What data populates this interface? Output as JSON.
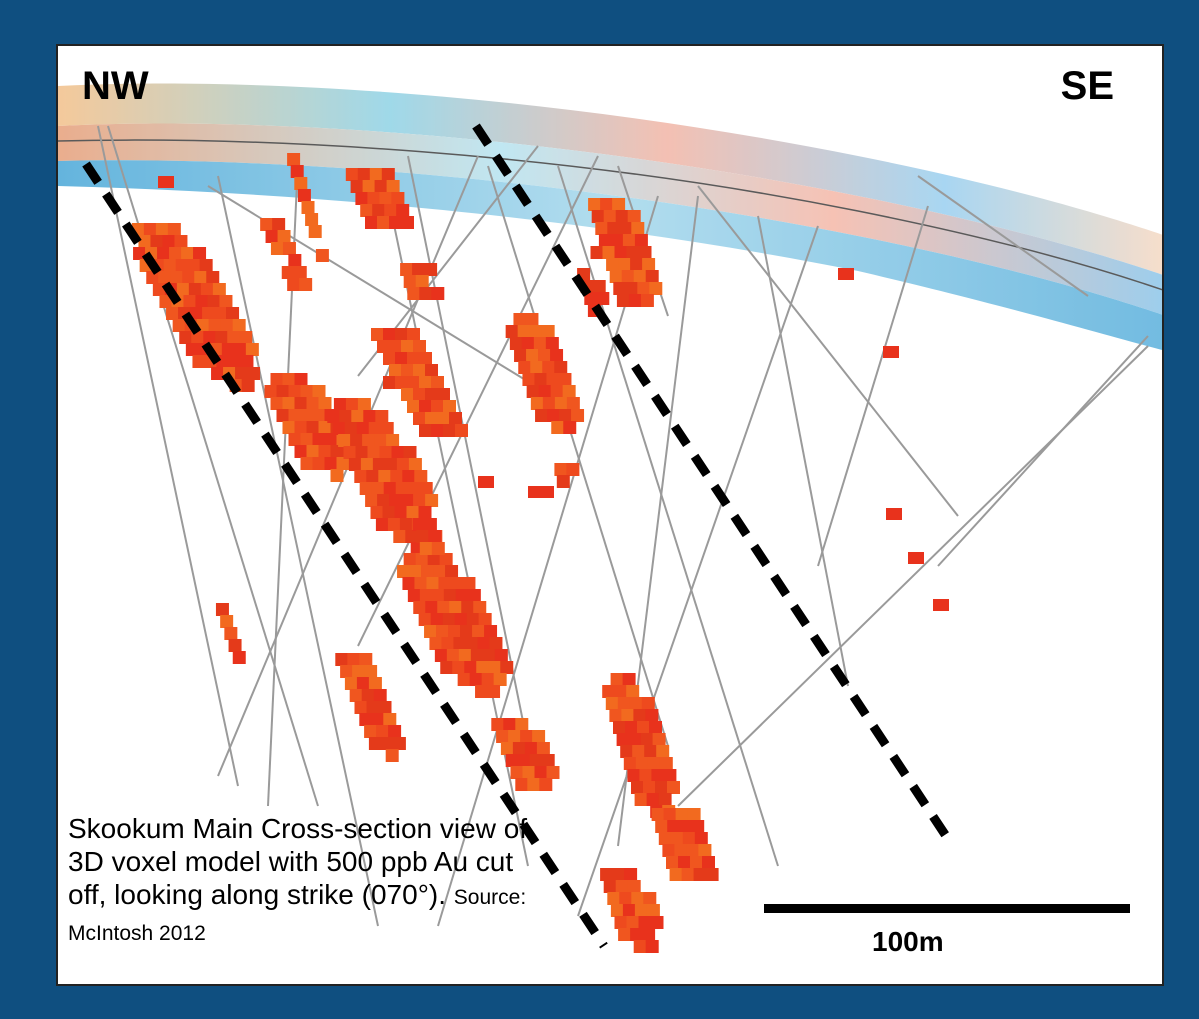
{
  "labels": {
    "left_direction": "NW",
    "right_direction": "SE"
  },
  "caption": {
    "main": "Skookum Main Cross-section view of 3D voxel model with 500 ppb Au cut off, looking along strike (070°). ",
    "source": "Source: McIntosh 2012"
  },
  "scale_bar": {
    "label": "100m"
  },
  "colors": {
    "voxel_primary": "#e8321c",
    "voxel_secondary": "#f26a1f",
    "drill_trace": "#9a9a9a",
    "fault_line": "#000000",
    "border": "#0f4f80"
  }
}
